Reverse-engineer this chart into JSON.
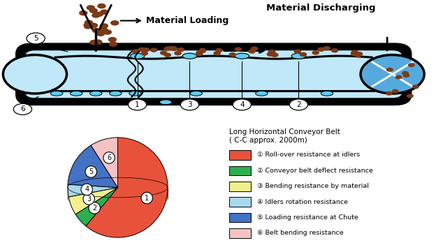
{
  "pie_sizes": [
    61,
    5,
    6,
    4,
    15,
    9
  ],
  "pie_colors": [
    "#E8523A",
    "#2DAF50",
    "#F0F08C",
    "#A8D8EA",
    "#4472C4",
    "#F4C2C2"
  ],
  "pie_legend_labels": [
    "① Roll-over resistance at idlers",
    "② Conveyor belt deflect resistance",
    "③ Bending resistance by material",
    "④ Idlers rotation resistance",
    "⑤ Loading resistance at Chute",
    "⑥ Belt bending resistance"
  ],
  "pie_number_labels": [
    "1",
    "2",
    "3",
    "4",
    "5",
    "6"
  ],
  "idler_number_labels": [
    "1",
    "3",
    "4",
    "2"
  ],
  "chart_title": "Long Horizontal Conveyor Belt\n( C-C approx. 2000m)",
  "background_color": "#FFFFFF",
  "loading_text": "Material Loading",
  "discharging_text": "Material Discharging"
}
